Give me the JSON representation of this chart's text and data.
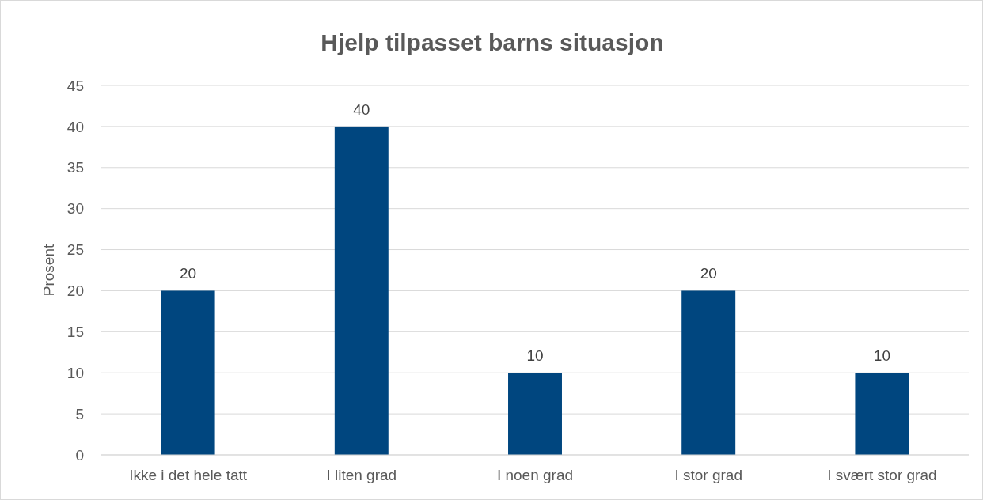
{
  "chart_data": {
    "type": "bar",
    "title": "Hjelp tilpasset barns situasjon",
    "ylabel": "Prosent",
    "categories": [
      "Ikke i det hele tatt",
      "I liten grad",
      "I noen grad",
      "I stor grad",
      "I svært stor grad"
    ],
    "values": [
      20,
      40,
      10,
      20,
      10
    ],
    "color": "#00467f",
    "ylim": [
      0,
      45
    ],
    "yticks": [
      0,
      5,
      10,
      15,
      20,
      25,
      30,
      35,
      40,
      45
    ],
    "grid": "y",
    "data_labels": true
  }
}
